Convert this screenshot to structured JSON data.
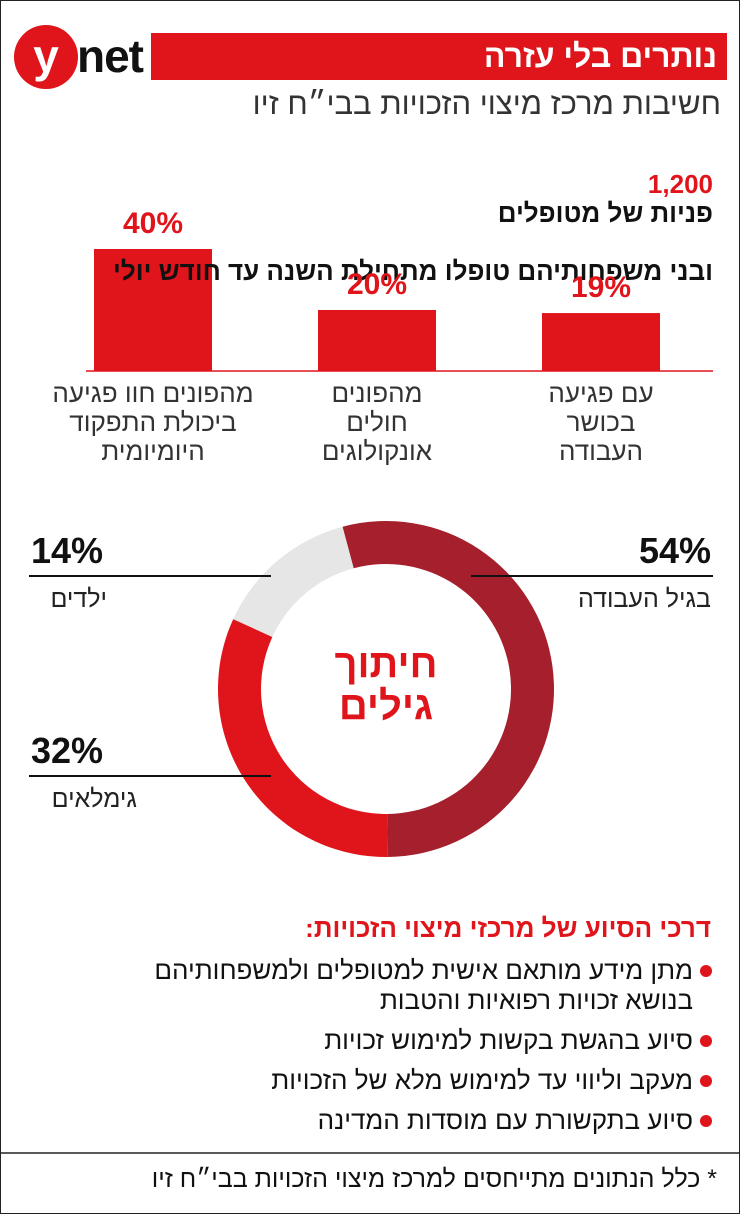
{
  "header": {
    "logo_y": "y",
    "logo_net": "net",
    "title": "נותרים בלי עזרה",
    "subtitle": "חשיבות מרכז מיצוי הזכויות בבי״ח זיו"
  },
  "intro": {
    "count": "1,200",
    "line1": "פניות של מטופלים",
    "line2": "ובני משפחותיהם טופלו מתחילת השנה עד חודש יולי"
  },
  "chart_data": [
    {
      "type": "bar",
      "color": "#e0141b",
      "categories": [
        "עם פגיעה\nבכושר\nהעבודה",
        "מהפונים\nחולים\nאונקולוגים",
        "מהפונים חוו פגיעה\nביכולת התפקוד\nהיומיומית"
      ],
      "values": [
        19,
        20,
        40
      ],
      "value_labels": [
        "19%",
        "20%",
        "40%"
      ]
    },
    {
      "type": "pie",
      "title": "חיתוך\nגילים",
      "categories": [
        "בגיל העבודה",
        "גימלאים",
        "ילדים"
      ],
      "values": [
        54,
        32,
        14
      ],
      "value_labels": [
        "54%",
        "32%",
        "14%"
      ],
      "colors": [
        "#a51f2c",
        "#e0141b",
        "#e6e6e6"
      ]
    }
  ],
  "assistance": {
    "title": "דרכי הסיוע של מרכזי מיצוי הזכויות:",
    "items": [
      "מתן מידע מותאם אישית למטופלים ולמשפחותיהם\nבנושא זכויות רפואיות והטבות",
      "סיוע בהגשת בקשות למימוש זכויות",
      "מעקב וליווי עד למימוש מלא של הזכויות",
      "סיוע בתקשורת עם מוסדות המדינה"
    ]
  },
  "footnote": "* כלל הנתונים מתייחסים למרכז מיצוי הזכויות בבי״ח זיו"
}
